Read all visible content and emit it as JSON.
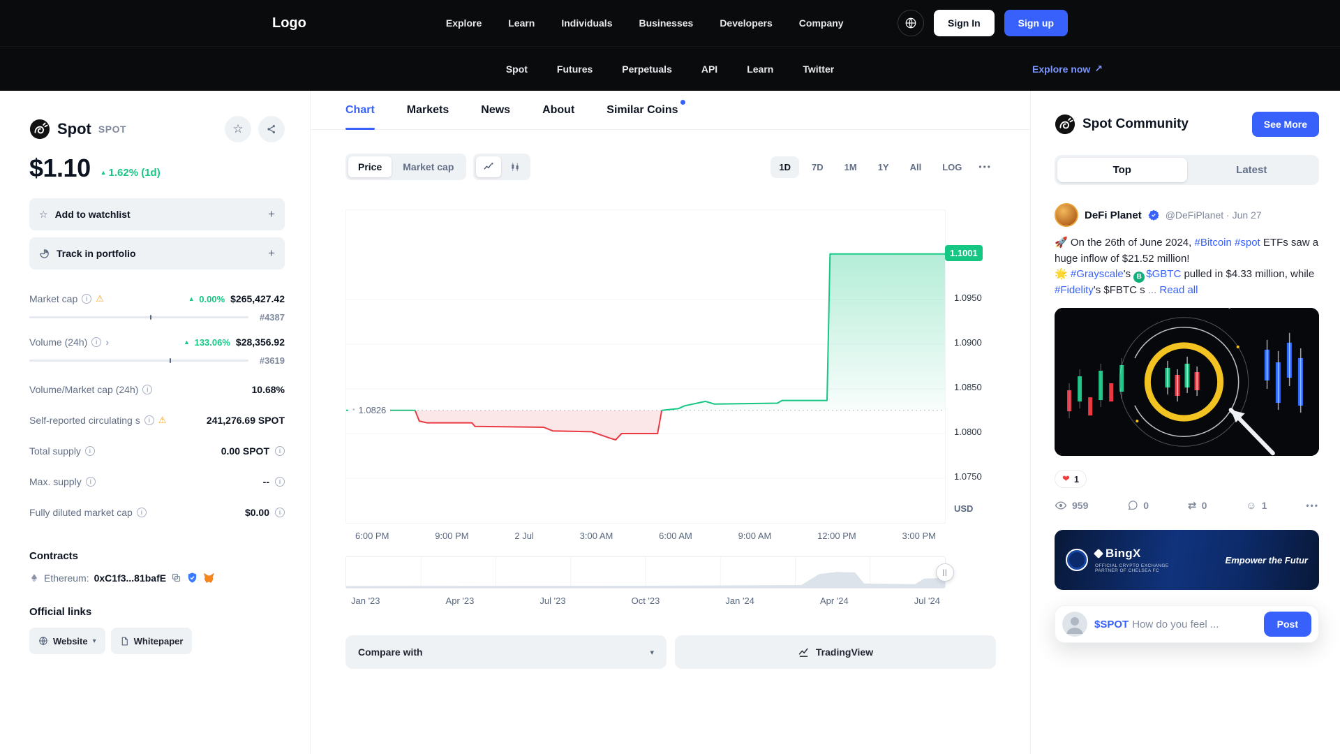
{
  "colors": {
    "accent": "#3861fb",
    "green": "#16c784",
    "red": "#ea3943",
    "dark": "#0a0b0d"
  },
  "header": {
    "logo": "Logo",
    "nav": [
      "Explore",
      "Learn",
      "Individuals",
      "Businesses",
      "Developers",
      "Company"
    ],
    "sign_in": "Sign In",
    "sign_up": "Sign up",
    "subnav": [
      "Spot",
      "Futures",
      "Perpetuals",
      "API",
      "Learn",
      "Twitter"
    ],
    "explore_now": "Explore now",
    "explore_arrow": "↗"
  },
  "coin": {
    "name": "Spot",
    "symbol": "SPOT",
    "price": "$1.10",
    "change": "1.62% (1d)",
    "watchlist": "Add to watchlist",
    "portfolio": "Track in portfolio",
    "plus": "+",
    "stats": [
      {
        "label": "Market cap",
        "change": "0.00%",
        "value": "$265,427.42",
        "rank": "#4387",
        "bar": 55
      },
      {
        "label": "Volume (24h)",
        "change": "133.06%",
        "value": "$28,356.92",
        "rank": "#3619",
        "bar": 64
      },
      {
        "label": "Volume/Market cap (24h)",
        "value": "10.68%"
      },
      {
        "label": "Self-reported circulating s",
        "value": "241,276.69 SPOT"
      },
      {
        "label": "Total supply",
        "value": "0.00 SPOT"
      },
      {
        "label": "Max. supply",
        "value": "--"
      },
      {
        "label": "Fully diluted market cap",
        "value": "$0.00"
      }
    ],
    "contracts_title": "Contracts",
    "contract": {
      "chain": "Ethereum:",
      "address": "0xC1f3...81bafE"
    },
    "links_title": "Official links",
    "website": "Website",
    "whitepaper": "Whitepaper"
  },
  "main": {
    "tabs": [
      "Chart",
      "Markets",
      "News",
      "About",
      "Similar Coins"
    ],
    "toggle": {
      "price": "Price",
      "market_cap": "Market cap"
    },
    "ranges": [
      "1D",
      "7D",
      "1M",
      "1Y",
      "All",
      "LOG"
    ],
    "active_range": "1D",
    "compare": "Compare with",
    "tradingview": "TradingView"
  },
  "chart_data": {
    "type": "area",
    "unit": "USD",
    "baseline": 1.0826,
    "baseline_label": "1.0826",
    "current_label": "1.1001",
    "current_value": 1.1001,
    "y_range": [
      1.07,
      1.105
    ],
    "y_ticks": [
      "1.0950",
      "1.0900",
      "1.0850",
      "1.0800",
      "1.0750"
    ],
    "x_labels": [
      "6:00 PM",
      "9:00 PM",
      "2 Jul",
      "3:00 AM",
      "6:00 AM",
      "9:00 AM",
      "12:00 PM",
      "3:00 PM"
    ],
    "points": [
      [
        0,
        1.0826
      ],
      [
        0.115,
        1.0826
      ],
      [
        0.122,
        1.0814
      ],
      [
        0.135,
        1.0812
      ],
      [
        0.21,
        1.0812
      ],
      [
        0.215,
        1.0808
      ],
      [
        0.33,
        1.0807
      ],
      [
        0.345,
        1.0803
      ],
      [
        0.41,
        1.0802
      ],
      [
        0.44,
        1.0795
      ],
      [
        0.45,
        1.0793
      ],
      [
        0.46,
        1.08
      ],
      [
        0.52,
        1.08
      ],
      [
        0.527,
        1.0826
      ],
      [
        0.555,
        1.0828
      ],
      [
        0.565,
        1.0831
      ],
      [
        0.6,
        1.0836
      ],
      [
        0.615,
        1.0833
      ],
      [
        0.72,
        1.0834
      ],
      [
        0.728,
        1.0837
      ],
      [
        0.803,
        1.0837
      ],
      [
        0.808,
        1.1001
      ],
      [
        1,
        1.1001
      ]
    ],
    "minimap": {
      "points": [
        [
          0,
          0.06
        ],
        [
          0.55,
          0.07
        ],
        [
          0.76,
          0.09
        ],
        [
          0.79,
          0.45
        ],
        [
          0.82,
          0.52
        ],
        [
          0.85,
          0.5
        ],
        [
          0.865,
          0.14
        ],
        [
          0.95,
          0.12
        ],
        [
          0.965,
          0.3
        ],
        [
          1,
          0.32
        ]
      ],
      "labels": [
        "Jan '23",
        "Apr '23",
        "Jul '23",
        "Oct '23",
        "Jan '24",
        "Apr '24",
        "Jul '24"
      ]
    }
  },
  "community": {
    "title": "Spot Community",
    "see_more": "See More",
    "tabs": [
      "Top",
      "Latest"
    ],
    "post": {
      "author": "DeFi Planet",
      "meta": "@DeFiPlanet · Jun 27",
      "t1": "🚀 On the 26th of June 2024, ",
      "l1": "#Bitcoin",
      "t2": " ",
      "l2": "#spot",
      "t3": " ETFs saw a huge inflow of $21.52 million!",
      "t4": "🌟 ",
      "l3": "#Grayscale",
      "t5": "'s ",
      "coin_letter": "B",
      "l4": "$GBTC",
      "t6": " pulled in $4.33 million, while ",
      "l5": "#Fidelity",
      "t7": "'s $FBTC s",
      "dots": " ... ",
      "read_all": "Read all",
      "likes": "1",
      "views": "959",
      "comments": "0",
      "reposts": "0",
      "reactions": "1"
    },
    "banner": {
      "brand": "BingX",
      "partner": "Official crypto exchange partner of Chelsea FC",
      "tagline": "Empower the Futur"
    },
    "composer": {
      "ticker": "$SPOT",
      "prompt": "How do you feel ...",
      "post": "Post"
    }
  }
}
